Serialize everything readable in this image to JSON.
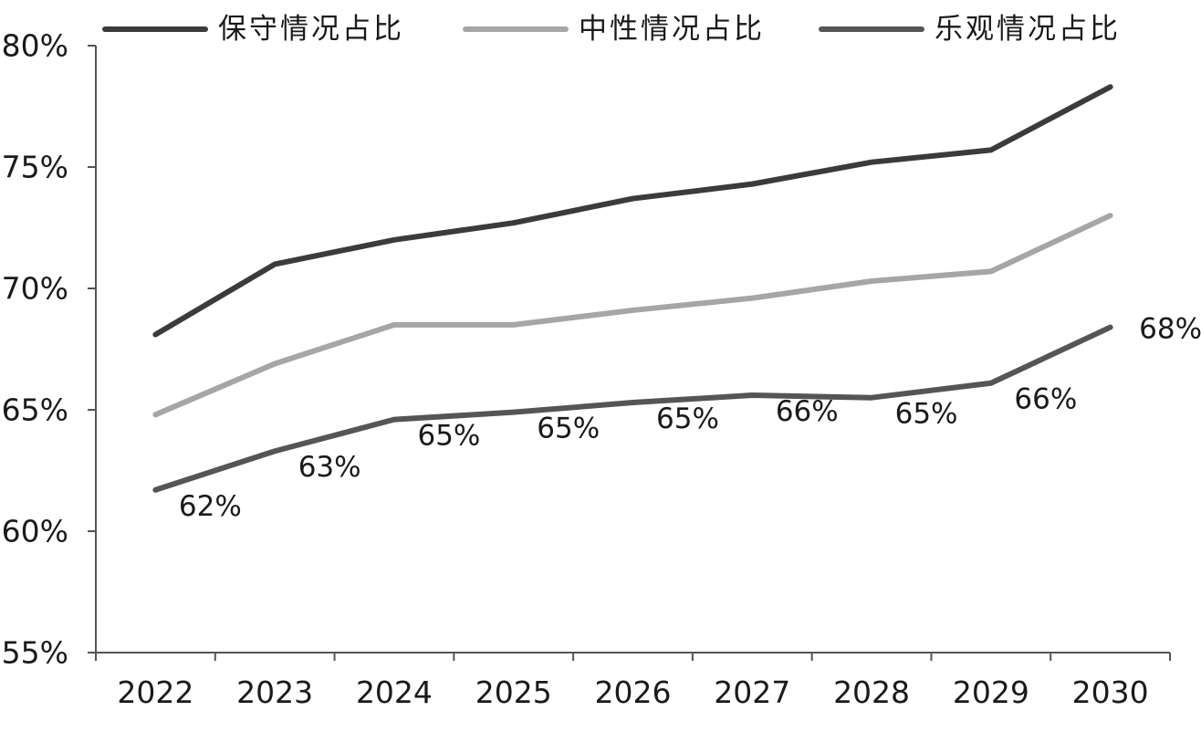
{
  "chart_data": {
    "type": "line",
    "categories": [
      "2022",
      "2023",
      "2024",
      "2025",
      "2026",
      "2027",
      "2028",
      "2029",
      "2030"
    ],
    "ylim": [
      55,
      80
    ],
    "yticks": [
      55,
      60,
      65,
      70,
      75,
      80
    ],
    "ytick_labels": [
      "55%",
      "60%",
      "65%",
      "70%",
      "75%",
      "80%"
    ],
    "grid": false,
    "legend_position": "top",
    "series": [
      {
        "name": "保守情况占比",
        "color": "#3d3a3b",
        "values": [
          68.1,
          71.0,
          72.0,
          72.7,
          73.7,
          74.3,
          75.2,
          75.7,
          78.3
        ]
      },
      {
        "name": "中性情况占比",
        "color": "#a6a6a6",
        "values": [
          64.8,
          66.9,
          68.5,
          68.5,
          69.1,
          69.6,
          70.3,
          70.7,
          73.0
        ]
      },
      {
        "name": "乐观情况占比",
        "color": "#575455",
        "values": [
          61.7,
          63.3,
          64.6,
          64.9,
          65.3,
          65.6,
          65.5,
          66.1,
          68.4
        ]
      }
    ],
    "data_labels": {
      "series_index": 2,
      "labels": [
        "62%",
        "63%",
        "65%",
        "65%",
        "65%",
        "66%",
        "65%",
        "66%",
        "68%"
      ]
    }
  }
}
